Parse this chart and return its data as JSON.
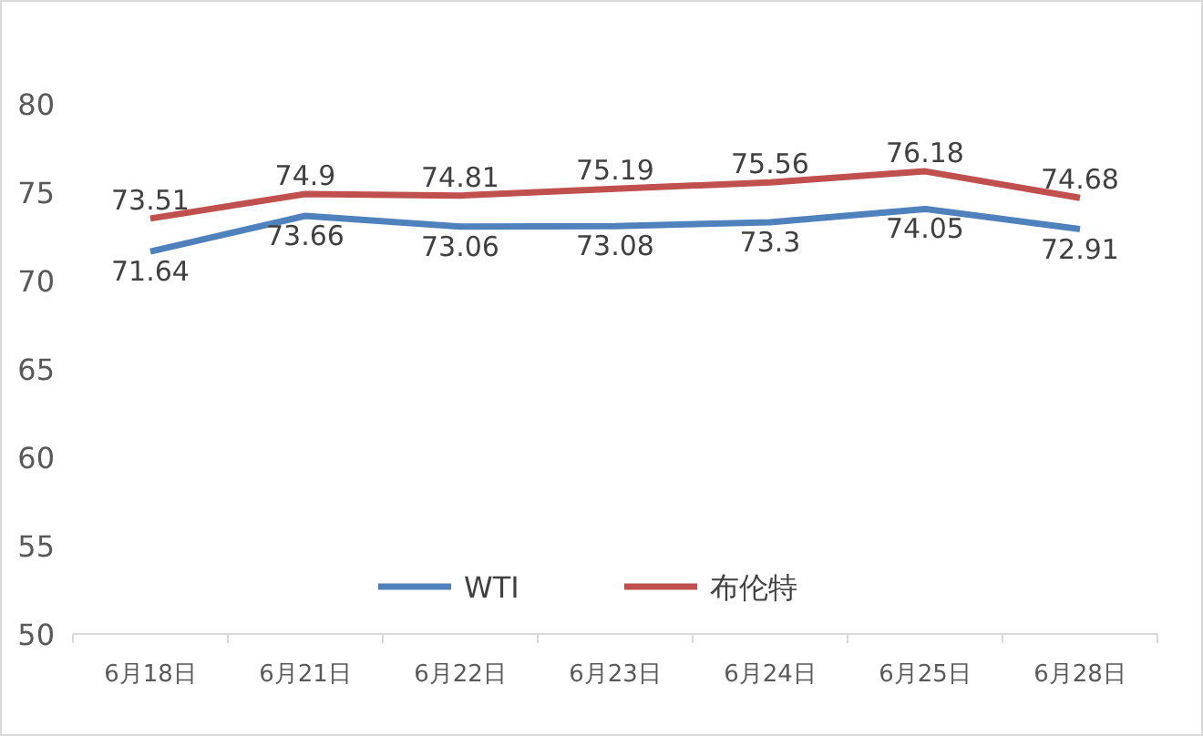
{
  "chart_data": {
    "type": "line",
    "categories": [
      "6月18日",
      "6月21日",
      "6月22日",
      "6月23日",
      "6月24日",
      "6月25日",
      "6月28日"
    ],
    "series": [
      {
        "name": "WTI",
        "color": "#4f81bd",
        "values": [
          71.64,
          73.66,
          73.06,
          73.08,
          73.3,
          74.05,
          72.91
        ]
      },
      {
        "name": "布伦特",
        "color": "#c0504d",
        "values": [
          73.51,
          74.9,
          74.81,
          75.19,
          75.56,
          76.18,
          74.68
        ]
      }
    ],
    "ylim": [
      50,
      80
    ],
    "yticks": [
      50,
      55,
      60,
      65,
      70,
      75,
      80
    ],
    "data_labels": true,
    "legend": "bottom",
    "grid": false,
    "marker": "none"
  }
}
